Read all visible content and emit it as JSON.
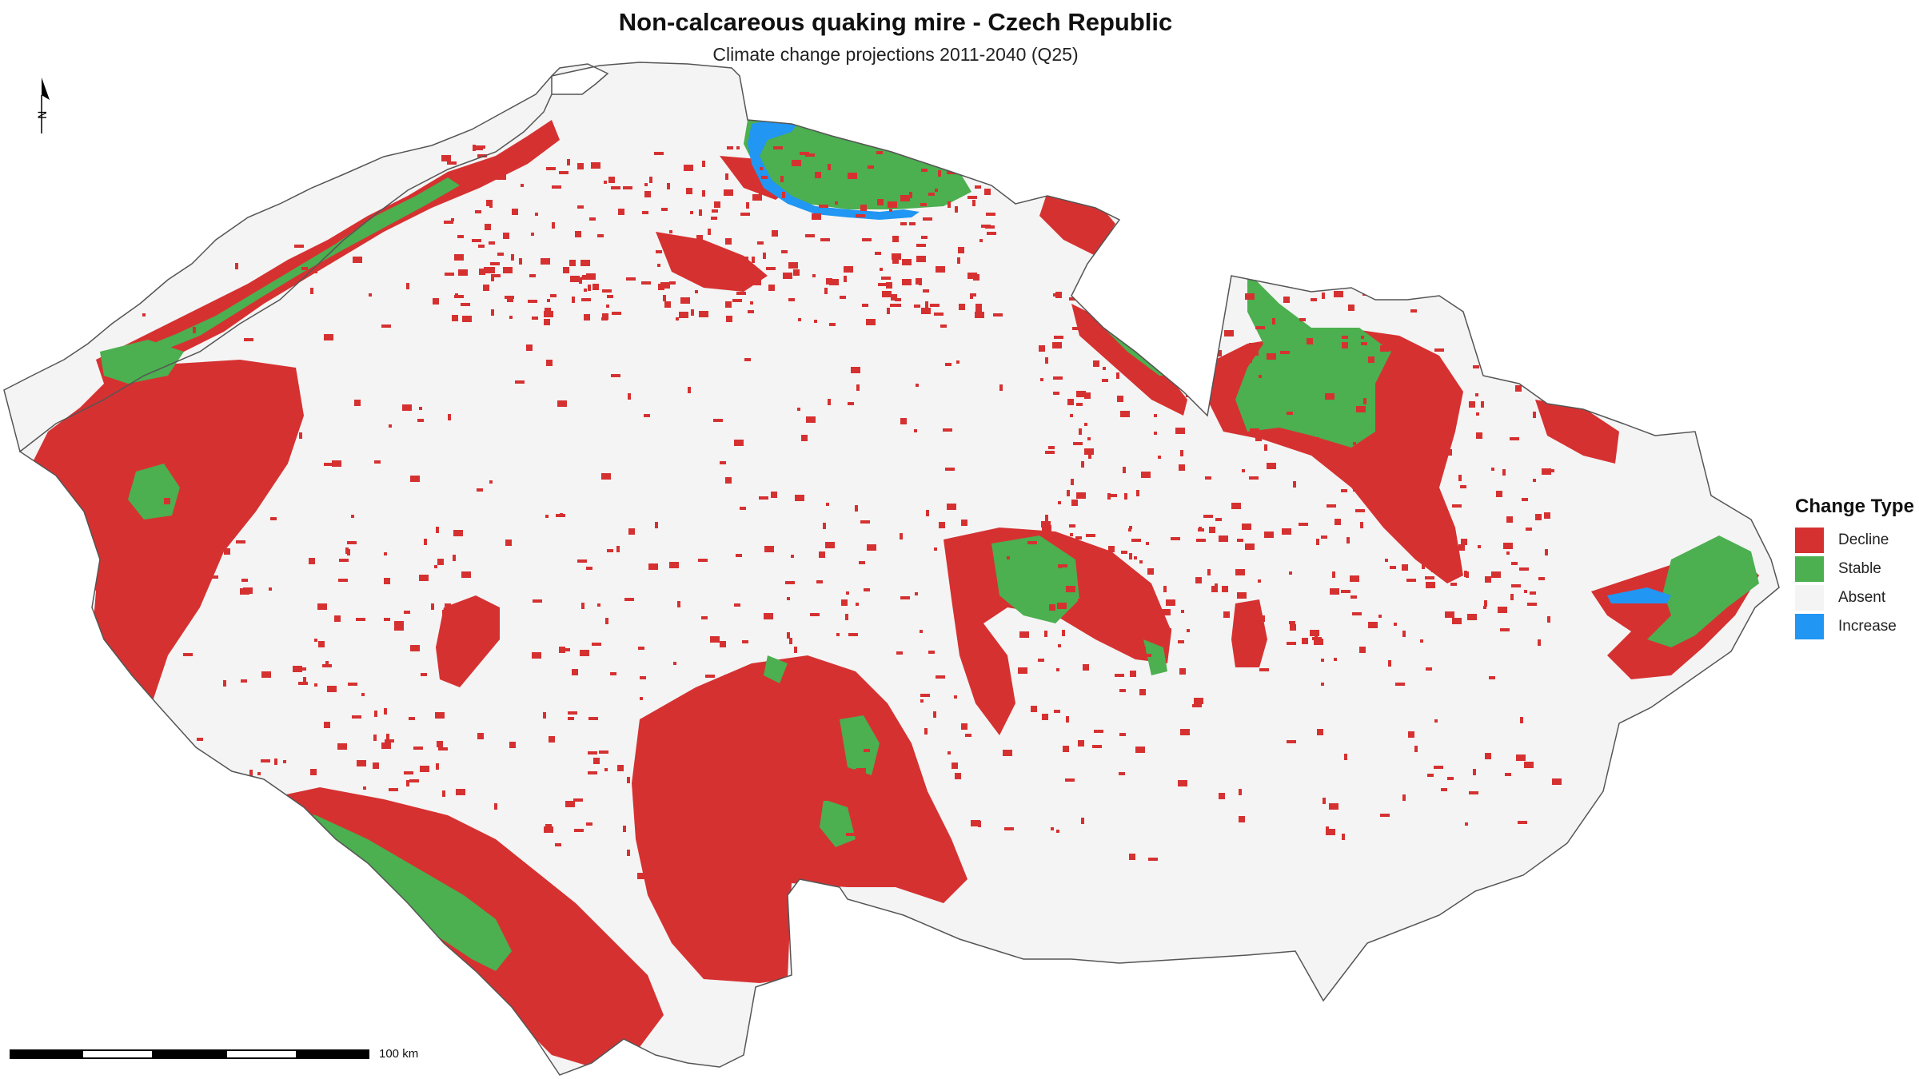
{
  "title": "Non-calcareous quaking mire - Czech Republic",
  "subtitle": "Climate change projections 2011-2040 (Q25)",
  "north_arrow": {
    "label": "N",
    "icon": "north-arrow-icon"
  },
  "scale_bar": {
    "label": "100 km",
    "segments": 5
  },
  "legend": {
    "title": "Change Type",
    "items": [
      {
        "label": "Decline",
        "color": "#d63131"
      },
      {
        "label": "Stable",
        "color": "#4caf50"
      },
      {
        "label": "Absent",
        "color": "#f4f4f4"
      },
      {
        "label": "Increase",
        "color": "#2196f3"
      }
    ]
  },
  "colors": {
    "decline": "#d63131",
    "stable": "#4caf50",
    "absent": "#f4f4f4",
    "increase": "#2196f3",
    "border": "#555555"
  }
}
